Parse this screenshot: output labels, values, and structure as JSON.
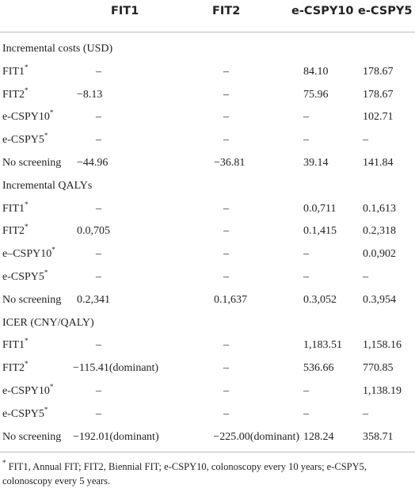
{
  "header": {
    "columns": [
      "FIT1",
      "FIT2",
      "e-CSPY10",
      "e-CSPY5"
    ]
  },
  "sections": [
    {
      "title": "Incremental costs (USD)",
      "rows": [
        {
          "label": "FIT1",
          "note": "*",
          "cells": [
            "–",
            "–",
            "84.10",
            "178.67"
          ]
        },
        {
          "label": "FIT2",
          "note": "*",
          "cells": [
            "−8.13",
            "–",
            "75.96",
            "178.67"
          ]
        },
        {
          "label": "e-CSPY10",
          "note": "*",
          "cells": [
            "–",
            "–",
            "–",
            "102.71"
          ]
        },
        {
          "label": "e-CSPY5",
          "note": "*",
          "cells": [
            "–",
            "–",
            "–",
            "–"
          ]
        },
        {
          "label": "No screening",
          "cells": [
            "−44.96",
            "−36.81",
            "39.14",
            "141.84"
          ]
        }
      ]
    },
    {
      "title": "Incremental QALYs",
      "rows": [
        {
          "label": "FIT1",
          "note": "*",
          "cells": [
            "–",
            "–",
            "0.0,711",
            "0.1,613"
          ]
        },
        {
          "label": "FIT2",
          "note": "*",
          "cells": [
            "0.0,705",
            "–",
            "0.1,415",
            "0.2,318"
          ]
        },
        {
          "label": "e–CSPY10",
          "note": "*",
          "cells": [
            "–",
            "–",
            "–",
            "0.0,902"
          ]
        },
        {
          "label": "e-CSPY5",
          "note": "*",
          "cells": [
            "–",
            "–",
            "–",
            "–"
          ]
        },
        {
          "label": "No screening",
          "cells": [
            "0.2,341",
            "0.1,637",
            "0.3,052",
            "0.3,954"
          ]
        }
      ]
    },
    {
      "title": "ICER (CNY/QALY)",
      "rows": [
        {
          "label": "FIT1",
          "note": "*",
          "cells": [
            "–",
            "–",
            "1,183.51",
            "1,158.16"
          ]
        },
        {
          "label": "FIT2",
          "note": "*",
          "cells": [
            "−115.41(dominant)",
            "–",
            "536.66",
            "770.85"
          ]
        },
        {
          "label": "e-CSPY10",
          "note": "*",
          "cells": [
            "–",
            "–",
            "–",
            "1,138.19"
          ]
        },
        {
          "label": "e-CSPY5",
          "note": "*",
          "cells": [
            "–",
            "–",
            "–",
            "–"
          ]
        },
        {
          "label": "No screening",
          "cells": [
            "−192.01(dominant)",
            "−225.00(dominant)",
            "128.24",
            "358.71"
          ]
        }
      ]
    }
  ],
  "footnote": {
    "mark": "*",
    "text": "FIT1, Annual FIT; FIT2, Biennial FIT; e-CSPY10, colonoscopy every 10 years; e-CSPY5, colonoscopy every 5 years."
  }
}
